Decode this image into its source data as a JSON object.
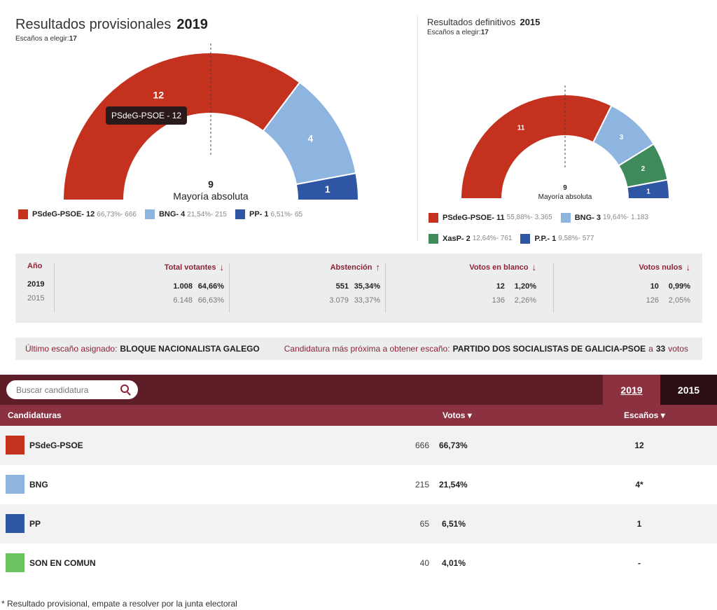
{
  "current": {
    "title": "Resultados provisionales",
    "year": "2019",
    "seats_label": "Escaños a elegir:",
    "seats_value": "17",
    "majority_value": "9",
    "majority_label": "Mayoría absoluta",
    "tooltip": "PSdeG-PSOE - 12",
    "legend": [
      {
        "name": "PSdeG-PSOE- 12",
        "detail": "66,73%- 666",
        "color": "#c4311f"
      },
      {
        "name": "BNG- 4",
        "detail": "21,54%- 215",
        "color": "#8eb5df"
      },
      {
        "name": "PP- 1",
        "detail": "6,51%- 65",
        "color": "#2e56a5"
      }
    ]
  },
  "previous": {
    "title": "Resultados definitivos",
    "year": "2015",
    "seats_label": "Escaños a elegir:",
    "seats_value": "17",
    "majority_value": "9",
    "majority_label": "Mayoría absoluta",
    "legend": [
      {
        "name": "PSdeG-PSOE- 11",
        "detail": "55,88%- 3.365",
        "color": "#c4311f"
      },
      {
        "name": "BNG- 3",
        "detail": "19,64%- 1.183",
        "color": "#8eb5df"
      },
      {
        "name": "XasP- 2",
        "detail": "12,64%- 761",
        "color": "#3f8a5a"
      },
      {
        "name": "P.P.- 1",
        "detail": "9,58%- 577",
        "color": "#2e56a5"
      }
    ]
  },
  "chart_data": [
    {
      "type": "pie",
      "title": "Resultados provisionales 2019",
      "categories": [
        "PSdeG-PSOE",
        "BNG",
        "PP"
      ],
      "values": [
        12,
        4,
        1
      ],
      "colors": [
        "#c4311f",
        "#8eb5df",
        "#2e56a5"
      ],
      "total": 17,
      "majority": 9
    },
    {
      "type": "pie",
      "title": "Resultados definitivos 2015",
      "categories": [
        "PSdeG-PSOE",
        "BNG",
        "XasP",
        "P.P."
      ],
      "values": [
        11,
        3,
        2,
        1
      ],
      "colors": [
        "#c4311f",
        "#8eb5df",
        "#3f8a5a",
        "#2e56a5"
      ],
      "total": 17,
      "majority": 9
    }
  ],
  "stats": {
    "year_header": "Año",
    "year_current": "2019",
    "year_prev": "2015",
    "columns": [
      {
        "header": "Total votantes",
        "arrow": "↓",
        "cur_n": "1.008",
        "cur_p": "64,66%",
        "prev_n": "6.148",
        "prev_p": "66,63%"
      },
      {
        "header": "Abstención",
        "arrow": "↑",
        "cur_n": "551",
        "cur_p": "35,34%",
        "prev_n": "3.079",
        "prev_p": "33,37%"
      },
      {
        "header": "Votos en blanco",
        "arrow": "↓",
        "cur_n": "12",
        "cur_p": "1,20%",
        "prev_n": "136",
        "prev_p": "2,26%"
      },
      {
        "header": "Votos nulos",
        "arrow": "↓",
        "cur_n": "10",
        "cur_p": "0,99%",
        "prev_n": "126",
        "prev_p": "2,05%"
      }
    ]
  },
  "escano": {
    "last_label": "Último escaño asignado:",
    "last_value": "BLOQUE NACIONALISTA GALEGO",
    "next_label": "Candidatura más próxima a obtener escaño:",
    "next_value": "PARTIDO DOS SOCIALISTAS DE GALICIA-PSOE",
    "next_connector": "a",
    "next_votes": "33",
    "next_votes_unit": "votos"
  },
  "table": {
    "search_placeholder": "Buscar candidatura",
    "tab_2019": "2019",
    "tab_2015": "2015",
    "col_candidaturas": "Candidaturas",
    "col_votos": "Votos ▾",
    "col_escanos": "Escaños ▾",
    "rows": [
      {
        "name": "PSdeG-PSOE",
        "votes": "666",
        "pct": "66,73%",
        "seats": "12",
        "color": "#c4311f"
      },
      {
        "name": "BNG",
        "votes": "215",
        "pct": "21,54%",
        "seats": "4*",
        "color": "#8eb5df"
      },
      {
        "name": "PP",
        "votes": "65",
        "pct": "6,51%",
        "seats": "1",
        "color": "#2e56a5"
      },
      {
        "name": "SON EN COMUN",
        "votes": "40",
        "pct": "4,01%",
        "seats": "-",
        "color": "#6cc160"
      }
    ]
  },
  "footnote": "* Resultado provisional, empate a resolver por la junta electoral"
}
